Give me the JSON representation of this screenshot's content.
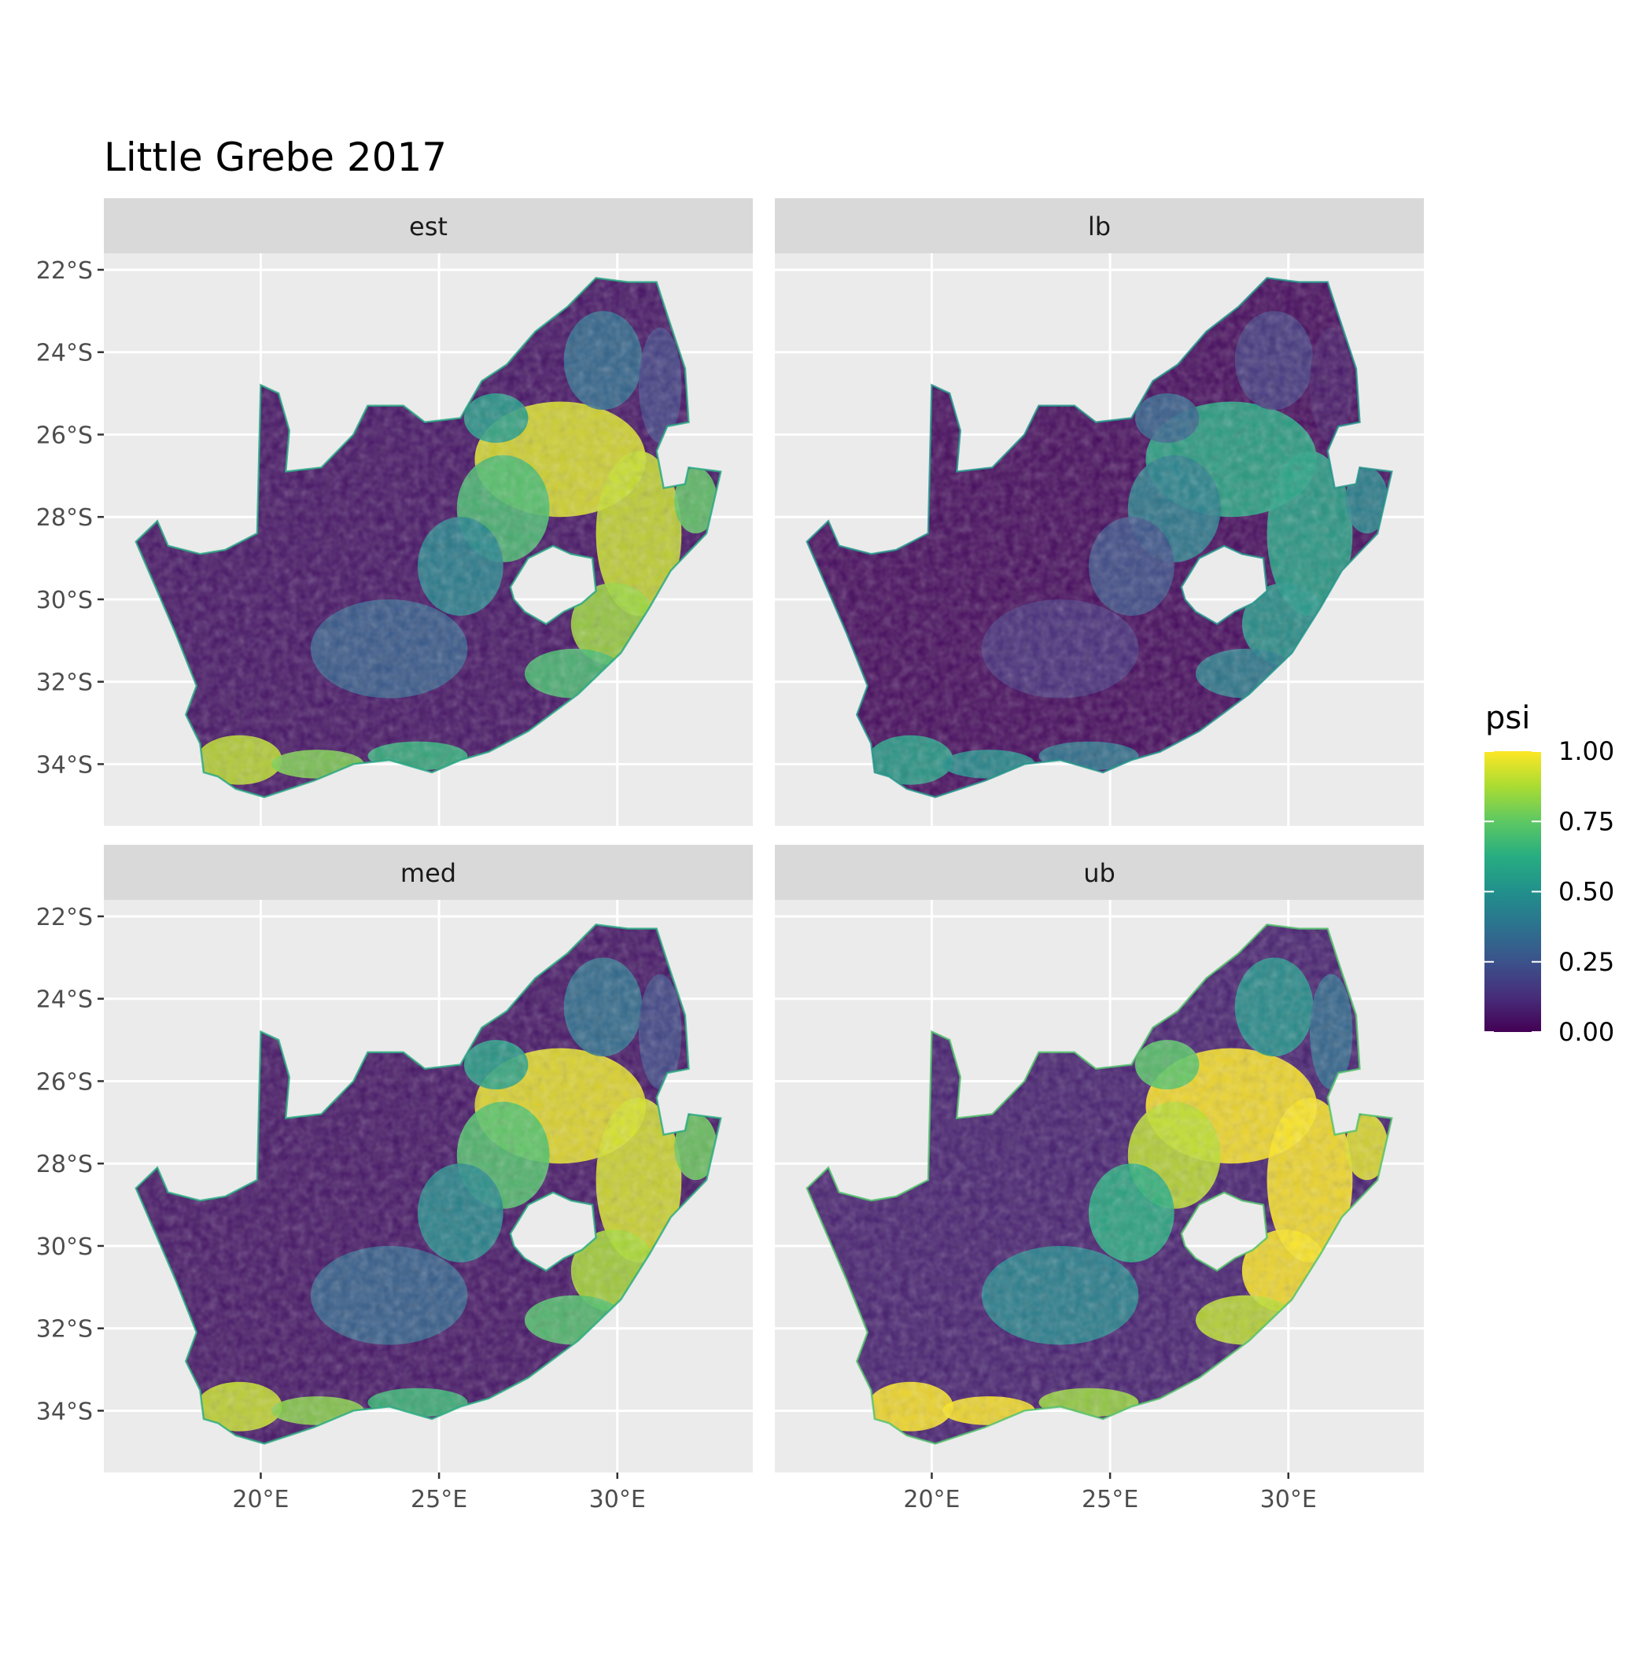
{
  "title": "Little Grebe 2017",
  "facets": [
    {
      "label": "est"
    },
    {
      "label": "lb"
    },
    {
      "label": "med"
    },
    {
      "label": "ub"
    }
  ],
  "axes": {
    "x_ticks": [
      "20°E",
      "25°E",
      "30°E"
    ],
    "y_ticks": [
      "22°S",
      "24°S",
      "26°S",
      "28°S",
      "30°S",
      "32°S",
      "34°S"
    ]
  },
  "legend": {
    "title": "psi",
    "ticks": [
      "1.00",
      "0.75",
      "0.50",
      "0.25",
      "0.00"
    ]
  },
  "colors": {
    "panel_bg": "#ebebeb",
    "strip_bg": "#d9d9d9",
    "grid": "#ffffff",
    "viridis_low": "#440154",
    "viridis_mid": "#21908c",
    "viridis_high": "#fde725"
  },
  "chart_data": {
    "type": "heatmap",
    "title": "Little Grebe 2017",
    "facets": [
      "est",
      "lb",
      "med",
      "ub"
    ],
    "xlabel": "",
    "ylabel": "",
    "xlim": [
      15.6,
      33.8
    ],
    "ylim": [
      -35.5,
      -21.6
    ],
    "x_ticks": [
      20,
      25,
      30
    ],
    "y_ticks": [
      -22,
      -24,
      -26,
      -28,
      -30,
      -32,
      -34
    ],
    "fill": "psi",
    "fill_range": [
      0,
      1
    ],
    "legend_position": "right",
    "grid": true
  }
}
